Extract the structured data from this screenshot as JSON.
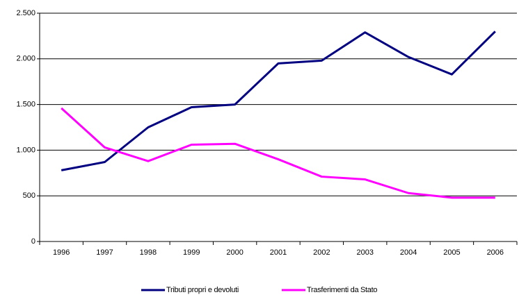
{
  "chart_data": {
    "type": "line",
    "categories": [
      "1996",
      "1997",
      "1998",
      "1999",
      "2000",
      "2001",
      "2002",
      "2003",
      "2004",
      "2005",
      "2006"
    ],
    "series": [
      {
        "name": "Tributi propri e devoluti",
        "color": "#000080",
        "values": [
          780,
          870,
          1250,
          1470,
          1500,
          1950,
          1980,
          2290,
          2020,
          1830,
          2300
        ]
      },
      {
        "name": "Trasferimenti da Stato",
        "color": "#ff00ff",
        "values": [
          1460,
          1030,
          880,
          1060,
          1070,
          900,
          710,
          680,
          530,
          480,
          480
        ]
      }
    ],
    "ylim": [
      0,
      2500
    ],
    "yticks": [
      0,
      500,
      {
        "value": 1000,
        "label": "1.000"
      },
      {
        "value": 1500,
        "label": "1.500"
      },
      {
        "value": 2000,
        "label": "2.000"
      },
      {
        "value": 2500,
        "label": "2.500"
      }
    ],
    "grid": true,
    "legend": "bottom"
  }
}
